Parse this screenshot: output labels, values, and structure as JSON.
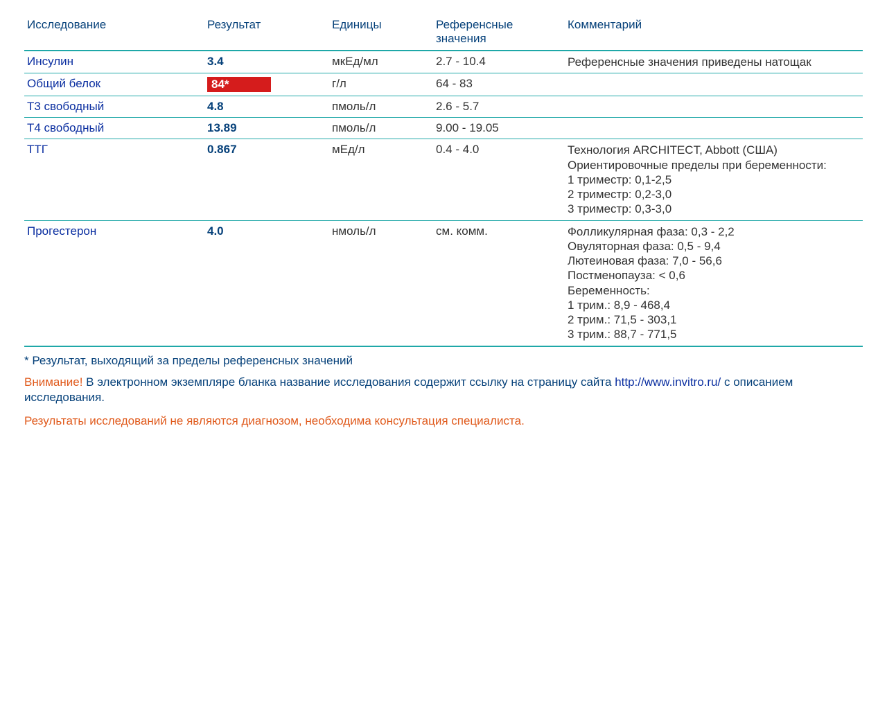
{
  "table": {
    "columns": {
      "test": "Исследование",
      "result": "Результат",
      "units": "Единицы",
      "reference": "Референсные значения",
      "comment": "Комментарий"
    },
    "rows": [
      {
        "test": "Инсулин",
        "result": "3.4",
        "out_of_range": false,
        "units": "мкЕд/мл",
        "reference": "2.7 - 10.4",
        "comment": "Референсные значения приведены натощак"
      },
      {
        "test": "Общий белок",
        "result": "84*",
        "out_of_range": true,
        "units": "г/л",
        "reference": "64 - 83",
        "comment": ""
      },
      {
        "test": "Т3 свободный",
        "result": "4.8",
        "out_of_range": false,
        "units": "пмоль/л",
        "reference": "2.6 - 5.7",
        "comment": ""
      },
      {
        "test": "Т4 свободный",
        "result": "13.89",
        "out_of_range": false,
        "units": "пмоль/л",
        "reference": "9.00 - 19.05",
        "comment": ""
      },
      {
        "test": "ТТГ",
        "result": "0.867",
        "out_of_range": false,
        "units": "мЕд/л",
        "reference": "0.4 - 4.0",
        "comment": "Технология ARCHITECT, Abbott (США)\nОриентировочные пределы при беременности:\n1 триместр: 0,1-2,5\n2 триместр: 0,2-3,0\n3 триместр: 0,3-3,0"
      },
      {
        "test": "Прогестерон",
        "result": "4.0",
        "out_of_range": false,
        "units": "нмоль/л",
        "reference": "см. комм.",
        "comment": "Фолликулярная фаза: 0,3 - 2,2\nОвуляторная фаза: 0,5 - 9,4\nЛютеиновая фаза: 7,0 - 56,6\nПостменопауза: < 0,6\nБеременность:\n1 трим.: 8,9 - 468,4\n2 трим.: 71,5 - 303,1\n3 трим.: 88,7 - 771,5"
      }
    ]
  },
  "footnote": "* Результат, выходящий за пределы референсных значений",
  "warning": {
    "prefix": "Внимание!",
    "text1": " В электронном экземпляре бланка название исследования содержит ссылку на страницу сайта ",
    "link": "http://www.invitro.ru/",
    "text2": " с описанием исследования."
  },
  "disclaimer": "Результаты исследований не являются диагнозом, необходима консультация специалиста.",
  "colors": {
    "header_text": "#06417a",
    "border": "#1fa8a8",
    "link_blue": "#0a2ea0",
    "out_of_range_bg": "#d51c1c",
    "out_of_range_fg": "#ffffff",
    "warn_orange": "#e05a1c",
    "body_text": "#333333",
    "background": "#ffffff"
  }
}
